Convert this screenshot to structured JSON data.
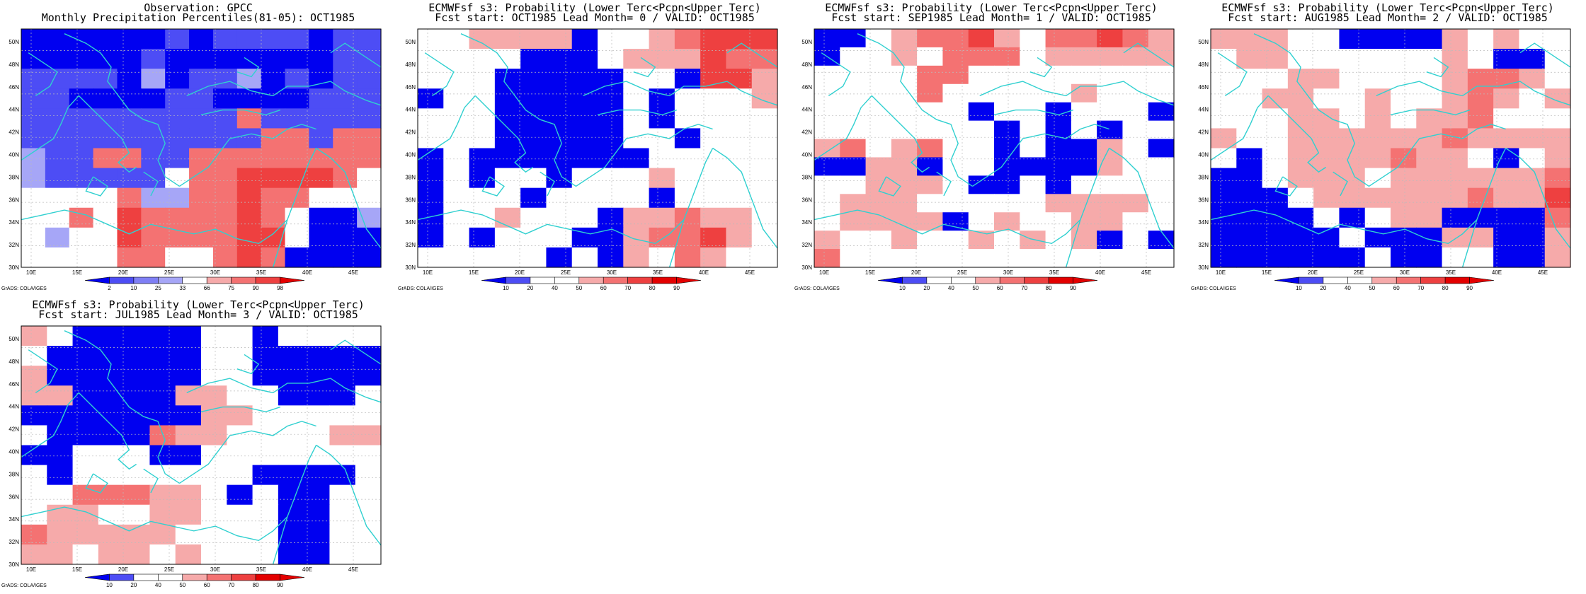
{
  "colors": {
    "blue_deep": "#0000f0",
    "blue_med": "#4d4df5",
    "blue_soft": "#7f7ff5",
    "blue_light": "#a6a6f7",
    "white": "#ffffff",
    "red_light": "#f6aaaa",
    "red_soft": "#f47272",
    "red_med": "#ee4040",
    "red_deep": "#e30000",
    "coast": "#30d0d0"
  },
  "lat_labels": [
    "50N",
    "48N",
    "46N",
    "44N",
    "42N",
    "40N",
    "38N",
    "36N",
    "34N",
    "32N",
    "30N"
  ],
  "lon_labels": [
    "10E",
    "15E",
    "20E",
    "25E",
    "30E",
    "35E",
    "40E",
    "45E"
  ],
  "credit": "GrADS: COLA/IGES",
  "panels": [
    {
      "title1": "Observation: GPCC",
      "title2": "Monthly Precipitation Percentiles(81-05): OCT1985",
      "legend": {
        "labels": [
          "2",
          "10",
          "25",
          "33",
          "66",
          "75",
          "90",
          "98"
        ],
        "colors": [
          "blue_deep",
          "blue_med",
          "blue_soft",
          "blue_light",
          "white",
          "red_light",
          "red_soft",
          "red_med",
          "red_deep"
        ]
      },
      "grid": [
        "BBBBBBCBCCCCBCC",
        "BBBBBCBBBBBBBCC",
        "CCCCBDBCCDBCBCC",
        "CCBBBBCCBBBBCCC",
        "CCCCCCCCCSCCCCC",
        "CCCCCCCCCCSSCSS",
        "DCCSSCCSSSSSSSS",
        "DCCCCCWSSTTTTSW",
        "WWWWSDDSSTSSWWW",
        "WWSWTSSSSTSWBBD",
        "WDWWTSSSSTTWBBB",
        "WWWWSSWWSTSBBBB"
      ]
    },
    {
      "title1": "ECMWFsf s3: Probability (Lower Terc<Pcpn<Upper Terc)",
      "title2": "Fcst start: OCT1985  Lead Month= 0 / VALID: OCT1985",
      "legend": {
        "labels": [
          "10",
          "20",
          "40",
          "50",
          "60",
          "70",
          "80",
          "90"
        ],
        "colors": [
          "blue_deep",
          "blue_med",
          "white",
          "white",
          "red_light",
          "red_soft",
          "red_med",
          "red_deep",
          "red_deep"
        ]
      },
      "grid": [
        "WWRRRRBWWRSTTT",
        "WWWWBBBWRRRTSS",
        "WWWBBBBBWWBTTR",
        "BWWBBBBBWBWWWR",
        "WWWBBBBBWBWWWW",
        "WWWBBBBBWWBWWW",
        "BWBBBBBBBWWWWW",
        "BWBWWBWWWRWWWW",
        "BWWWBWWWWBWWWW",
        "BWWRWWWBRRSRRW",
        "BWBWWWBBRSSTRW",
        "WWWWWBWBRWSRWW"
      ]
    },
    {
      "title1": "ECMWFsf s3: Probability (Lower Terc<Pcpn<Upper Terc)",
      "title2": "Fcst start: SEP1985  Lead Month= 1 / VALID: OCT1985",
      "legend": {
        "labels": [
          "10",
          "20",
          "40",
          "50",
          "60",
          "70",
          "80",
          "90"
        ],
        "colors": [
          "blue_deep",
          "blue_med",
          "white",
          "white",
          "red_light",
          "red_soft",
          "red_med",
          "red_deep",
          "red_deep"
        ]
      },
      "grid": [
        "BBWRSSTRWSSTSR",
        "BWWRWSSSWRRRRR",
        "WWWWSSWWWWWWWW",
        "WWWWSWWWWWRWWW",
        "WWWWWWBWWBWWWB",
        "WWWWWWWBWBWBWW",
        "RSWRSWWBWBBRWB",
        "BBRRBWWBBBBRWW",
        "WWRRRWBBWBWWWW",
        "WRRRWWWWWRRRRW",
        "WRRRRBWRWWRRWW",
        "RWWRWWRWRWRBWB",
        "SWWWWWWWWWWWWW"
      ]
    },
    {
      "title1": "ECMWFsf s3: Probability (Lower Terc<Pcpn<Upper Terc)",
      "title2": "Fcst start: AUG1985  Lead Month= 2 / VALID: OCT1985",
      "legend": {
        "labels": [
          "10",
          "20",
          "40",
          "50",
          "60",
          "70",
          "80",
          "90"
        ],
        "colors": [
          "blue_deep",
          "blue_med",
          "white",
          "white",
          "red_light",
          "red_soft",
          "red_med",
          "red_deep",
          "red_deep"
        ]
      },
      "grid": [
        "RRRWWBBBBRWRWW",
        "WRRWWWWWWRWBBW",
        "WWWRRWWWWRSSRW",
        "WWRRWWRWWRSRWR",
        "WWWRRWRWRRSWWW",
        "RWWRRRRRRSRRRR",
        "WBWRRRRSRRWBWR",
        "BBWRRRWRRRRRRS",
        "BBBWRRRRRRSRRT",
        "BBBBWBWRRBBBBS",
        "BBBBBWBBBRRBBR",
        "BBBBBBWBBWWBBR"
      ]
    },
    {
      "title1": "ECMWFsf s3: Probability (Lower Terc<Pcpn<Upper Terc)",
      "title2": "Fcst start: JUL1985  Lead Month= 3 / VALID: OCT1985",
      "legend": {
        "labels": [
          "10",
          "20",
          "40",
          "50",
          "60",
          "70",
          "80",
          "90"
        ],
        "colors": [
          "blue_deep",
          "blue_med",
          "white",
          "white",
          "red_light",
          "red_soft",
          "red_med",
          "red_deep",
          "red_deep"
        ]
      },
      "grid": [
        "RWBBBBBWWBWWWW",
        "WBBBBBBWWBBBBB",
        "RBBBBBBWWBBBBB",
        "RRBBBBRRWWBBBW",
        "BBBBBBBRRWWWWW",
        "WBBBBSRRWWWWRR",
        "BBWWWBBWWWWWWW",
        "WBWWWWWWWBBBBW",
        "WWSSSRRWBWBBWW",
        "WRRWWRRWWWBBWW",
        "SRRRRRWWWWBBWW",
        "RRWRRWRWWWBBWW"
      ]
    }
  ]
}
